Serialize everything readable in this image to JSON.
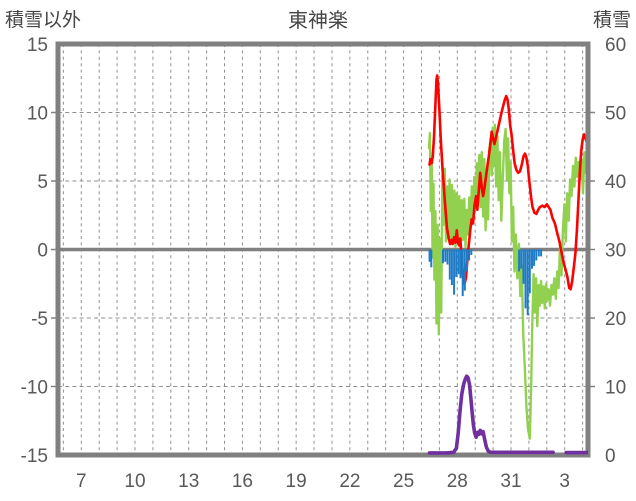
{
  "header": {
    "left_axis_title": "積雪以外",
    "chart_title": "東神楽",
    "right_axis_title": "積雪"
  },
  "colors": {
    "border": "#808080",
    "zero_line": "#808080",
    "gridline": "#8f8f8f",
    "tick_text": "#595959",
    "title_text": "#454545",
    "red_line": "#fe0000",
    "green_line": "#92d050",
    "blue_bars": "#1f7cc4",
    "purple_line": "#7030a0"
  },
  "chart_data": {
    "type": "line",
    "title": "東神楽",
    "left_axis": {
      "title": "積雪以外",
      "range": [
        -15,
        15
      ],
      "ticks": [
        15,
        10,
        5,
        0,
        -5,
        -10,
        -15
      ]
    },
    "right_axis": {
      "title": "積雪",
      "range": [
        0,
        60
      ],
      "ticks": [
        60,
        50,
        40,
        30,
        20,
        10,
        0
      ]
    },
    "x_axis": {
      "tick_labels": [
        "7",
        "10",
        "13",
        "16",
        "19",
        "22",
        "25",
        "28",
        "31",
        "3"
      ],
      "tick_days": [
        7,
        10,
        13,
        16,
        19,
        22,
        25,
        28,
        31,
        34
      ],
      "domain_days": [
        5.7,
        35.3
      ],
      "gridline_every_days": 1,
      "note_day_units": "continuous December day number; 32+ = January"
    },
    "grid": "dashed daily vertical + dashed horizontal every 5 left-units; solid thick line at left 0 / right 30",
    "legend": "none",
    "series": [
      {
        "name": "green-line",
        "axis": "left",
        "type": "line",
        "color": "#92d050",
        "width": 2.4,
        "points": [
          [
            26.42,
            7.4
          ],
          [
            26.47,
            8.5
          ],
          [
            26.52,
            2.8
          ],
          [
            26.57,
            6.6
          ],
          [
            26.62,
            -0.6
          ],
          [
            26.67,
            4.8
          ],
          [
            26.72,
            -2.2
          ],
          [
            26.78,
            2.8
          ],
          [
            26.84,
            -5.4
          ],
          [
            26.9,
            1.8
          ],
          [
            26.97,
            -6.2
          ],
          [
            27.03,
            0.8
          ],
          [
            27.1,
            -4.6
          ],
          [
            27.17,
            5.4
          ],
          [
            27.23,
            1.8
          ],
          [
            27.3,
            5.9
          ],
          [
            27.37,
            0.6
          ],
          [
            27.44,
            4.6
          ],
          [
            27.5,
            0.9
          ],
          [
            27.57,
            5.1
          ],
          [
            27.64,
            0.4
          ],
          [
            27.7,
            4.7
          ],
          [
            27.77,
            0.7
          ],
          [
            27.84,
            4.3
          ],
          [
            27.9,
            0.2
          ],
          [
            27.97,
            4.1
          ],
          [
            28.04,
            0.6
          ],
          [
            28.11,
            3.9
          ],
          [
            28.18,
            0.3
          ],
          [
            28.25,
            3.6
          ],
          [
            28.32,
            0.7
          ],
          [
            28.39,
            3.7
          ],
          [
            28.46,
            0.2
          ],
          [
            28.53,
            2.9
          ],
          [
            28.6,
            1.1
          ],
          [
            28.67,
            3.8
          ],
          [
            28.74,
            1.6
          ],
          [
            28.81,
            4.6
          ],
          [
            28.88,
            2.4
          ],
          [
            28.95,
            5.3
          ],
          [
            29.02,
            3.1
          ],
          [
            29.09,
            6.3
          ],
          [
            29.16,
            3.4
          ],
          [
            29.23,
            6.9
          ],
          [
            29.3,
            3.1
          ],
          [
            29.37,
            7.1
          ],
          [
            29.44,
            2.4
          ],
          [
            29.51,
            6.6
          ],
          [
            29.58,
            1.4
          ],
          [
            29.65,
            5.8
          ],
          [
            29.72,
            2.2
          ],
          [
            29.79,
            7.3
          ],
          [
            29.86,
            8.1
          ],
          [
            29.92,
            5.4
          ],
          [
            29.98,
            8.9
          ],
          [
            30.04,
            6.1
          ],
          [
            30.1,
            9.1
          ],
          [
            30.17,
            4.6
          ],
          [
            30.24,
            8.3
          ],
          [
            30.31,
            3.6
          ],
          [
            30.38,
            7.1
          ],
          [
            30.46,
            2.1
          ],
          [
            30.54,
            5.2
          ],
          [
            30.62,
            7.9
          ],
          [
            30.7,
            8.8
          ],
          [
            30.77,
            5.1
          ],
          [
            30.84,
            8.1
          ],
          [
            30.91,
            4.1
          ],
          [
            30.98,
            6.4
          ],
          [
            31.05,
            0.6
          ],
          [
            31.12,
            3.1
          ],
          [
            31.19,
            -1.6
          ],
          [
            31.27,
            1.1
          ],
          [
            31.35,
            -2.1
          ],
          [
            31.44,
            0.4
          ],
          [
            31.52,
            -3.4
          ],
          [
            31.6,
            -1.2
          ],
          [
            31.68,
            -6.1
          ],
          [
            31.77,
            -8.6
          ],
          [
            31.86,
            -11.4
          ],
          [
            31.95,
            -13.1
          ],
          [
            32.05,
            -13.8
          ],
          [
            32.12,
            -10.1
          ],
          [
            32.19,
            -5.4
          ],
          [
            32.26,
            -1.8
          ],
          [
            32.33,
            -4.6
          ],
          [
            32.4,
            -2.1
          ],
          [
            32.47,
            -5.6
          ],
          [
            32.54,
            -2.6
          ],
          [
            32.61,
            -4.1
          ],
          [
            32.68,
            -2.3
          ],
          [
            32.75,
            -3.9
          ],
          [
            32.82,
            -2.7
          ],
          [
            32.89,
            -4.3
          ],
          [
            32.96,
            -2.5
          ],
          [
            33.03,
            -3.7
          ],
          [
            33.1,
            -2.9
          ],
          [
            33.18,
            -4.1
          ],
          [
            33.26,
            -2.6
          ],
          [
            33.34,
            -3.3
          ],
          [
            33.42,
            -2.1
          ],
          [
            33.5,
            -3.6
          ],
          [
            33.58,
            -1.6
          ],
          [
            33.66,
            -2.8
          ],
          [
            33.74,
            0.4
          ],
          [
            33.82,
            -1.9
          ],
          [
            33.9,
            1.4
          ],
          [
            33.98,
            3.3
          ],
          [
            34.06,
            0.6
          ],
          [
            34.14,
            4.1
          ],
          [
            34.22,
            2.1
          ],
          [
            34.3,
            5.1
          ],
          [
            34.38,
            3.9
          ],
          [
            34.46,
            6.1
          ],
          [
            34.54,
            4.6
          ],
          [
            34.62,
            6.7
          ],
          [
            34.7,
            5.3
          ],
          [
            34.78,
            6.4
          ],
          [
            34.86,
            5.1
          ],
          [
            34.94,
            6.6
          ],
          [
            35.02,
            4.1
          ],
          [
            35.1,
            7.1
          ],
          [
            35.18,
            5.6
          ],
          [
            35.3,
            8.6
          ]
        ]
      },
      {
        "name": "red-line",
        "axis": "left",
        "type": "line",
        "color": "#fe0000",
        "width": 2.6,
        "points": [
          [
            26.45,
            6.2
          ],
          [
            26.5,
            6.6
          ],
          [
            26.57,
            6.3
          ],
          [
            26.63,
            6.8
          ],
          [
            26.7,
            8.2
          ],
          [
            26.78,
            10.6
          ],
          [
            26.84,
            12.4
          ],
          [
            26.88,
            12.7
          ],
          [
            26.93,
            12.0
          ],
          [
            27.0,
            10.2
          ],
          [
            27.08,
            8.0
          ],
          [
            27.18,
            5.8
          ],
          [
            27.3,
            3.6
          ],
          [
            27.42,
            1.6
          ],
          [
            27.52,
            0.8
          ],
          [
            27.6,
            0.4
          ],
          [
            27.68,
            0.7
          ],
          [
            27.75,
            0.4
          ],
          [
            27.82,
            0.9
          ],
          [
            27.9,
            0.5
          ],
          [
            27.97,
            1.4
          ],
          [
            28.03,
            0.6
          ],
          [
            28.1,
            0.3
          ],
          [
            28.17,
            0.8
          ],
          [
            28.24,
            -0.6
          ],
          [
            28.32,
            -1.9
          ],
          [
            28.4,
            -2.5
          ],
          [
            28.48,
            -2.1
          ],
          [
            28.55,
            -1.0
          ],
          [
            28.63,
            0.2
          ],
          [
            28.72,
            1.4
          ],
          [
            28.8,
            2.2
          ],
          [
            28.88,
            1.9
          ],
          [
            28.96,
            3.2
          ],
          [
            29.05,
            3.9
          ],
          [
            29.12,
            2.9
          ],
          [
            29.2,
            4.3
          ],
          [
            29.28,
            5.6
          ],
          [
            29.36,
            4.6
          ],
          [
            29.44,
            3.9
          ],
          [
            29.52,
            4.5
          ],
          [
            29.6,
            5.3
          ],
          [
            29.68,
            6.1
          ],
          [
            29.76,
            6.8
          ],
          [
            29.84,
            7.6
          ],
          [
            29.92,
            8.6
          ],
          [
            30.0,
            8.1
          ],
          [
            30.08,
            7.7
          ],
          [
            30.16,
            8.2
          ],
          [
            30.25,
            8.7
          ],
          [
            30.35,
            9.3
          ],
          [
            30.45,
            9.9
          ],
          [
            30.55,
            10.4
          ],
          [
            30.65,
            10.9
          ],
          [
            30.73,
            11.2
          ],
          [
            30.8,
            11.0
          ],
          [
            30.87,
            10.3
          ],
          [
            30.95,
            9.1
          ],
          [
            31.03,
            8.4
          ],
          [
            31.12,
            7.2
          ],
          [
            31.2,
            6.3
          ],
          [
            31.3,
            5.8
          ],
          [
            31.4,
            5.6
          ],
          [
            31.5,
            5.7
          ],
          [
            31.6,
            6.2
          ],
          [
            31.7,
            6.8
          ],
          [
            31.78,
            7.0
          ],
          [
            31.86,
            6.7
          ],
          [
            31.94,
            6.1
          ],
          [
            32.03,
            4.9
          ],
          [
            32.12,
            3.8
          ],
          [
            32.2,
            3.1
          ],
          [
            32.3,
            2.7
          ],
          [
            32.42,
            2.6
          ],
          [
            32.52,
            2.9
          ],
          [
            32.62,
            3.1
          ],
          [
            32.75,
            3.2
          ],
          [
            32.88,
            3.1
          ],
          [
            33.0,
            3.3
          ],
          [
            33.1,
            3.1
          ],
          [
            33.2,
            2.9
          ],
          [
            33.32,
            2.3
          ],
          [
            33.45,
            1.9
          ],
          [
            33.58,
            1.2
          ],
          [
            33.7,
            0.6
          ],
          [
            33.82,
            -0.2
          ],
          [
            33.95,
            -1.0
          ],
          [
            34.05,
            -1.5
          ],
          [
            34.15,
            -2.0
          ],
          [
            34.25,
            -2.8
          ],
          [
            34.33,
            -2.9
          ],
          [
            34.42,
            -2.3
          ],
          [
            34.52,
            -1.2
          ],
          [
            34.6,
            -0.2
          ],
          [
            34.68,
            1.4
          ],
          [
            34.76,
            3.4
          ],
          [
            34.84,
            5.6
          ],
          [
            34.92,
            7.2
          ],
          [
            35.0,
            8.0
          ],
          [
            35.08,
            8.4
          ],
          [
            35.16,
            8.1
          ],
          [
            35.24,
            7.8
          ],
          [
            35.3,
            8.3
          ]
        ]
      },
      {
        "name": "blue-bars",
        "axis": "left",
        "type": "bar",
        "color": "#1f7cc4",
        "bar_width_days": 0.11,
        "points": [
          [
            26.45,
            -0.9
          ],
          [
            26.55,
            -1.3
          ],
          [
            27.2,
            -1.0
          ],
          [
            27.33,
            -0.9
          ],
          [
            27.45,
            -1.1
          ],
          [
            27.58,
            -2.2
          ],
          [
            27.7,
            -2.6
          ],
          [
            27.82,
            -3.3
          ],
          [
            27.94,
            -2.0
          ],
          [
            28.06,
            -1.8
          ],
          [
            28.18,
            -2.1
          ],
          [
            28.3,
            -3.4
          ],
          [
            28.42,
            -3.0
          ],
          [
            28.54,
            -1.6
          ],
          [
            28.66,
            -0.8
          ],
          [
            28.78,
            -0.4
          ],
          [
            31.45,
            -1.6
          ],
          [
            31.57,
            -1.4
          ],
          [
            31.69,
            -2.5
          ],
          [
            31.81,
            -4.3
          ],
          [
            31.93,
            -4.8
          ],
          [
            32.05,
            -3.2
          ],
          [
            32.17,
            -1.4
          ],
          [
            32.29,
            -1.2
          ],
          [
            32.41,
            -0.8
          ],
          [
            32.55,
            -0.5
          ],
          [
            32.68,
            -0.5
          ]
        ]
      },
      {
        "name": "purple-snow-line",
        "axis": "right",
        "type": "line",
        "color": "#7030a0",
        "width": 3.6,
        "segments": [
          [
            [
              26.45,
              0.3
            ],
            [
              27.4,
              0.3
            ],
            [
              27.8,
              0.4
            ],
            [
              27.95,
              1.0
            ],
            [
              28.05,
              3.2
            ],
            [
              28.15,
              6.4
            ],
            [
              28.25,
              8.9
            ],
            [
              28.35,
              10.3
            ],
            [
              28.45,
              11.1
            ],
            [
              28.52,
              11.5
            ],
            [
              28.6,
              11.3
            ],
            [
              28.68,
              10.3
            ],
            [
              28.76,
              8.2
            ],
            [
              28.84,
              6.0
            ],
            [
              28.9,
              4.4
            ],
            [
              28.97,
              3.2
            ],
            [
              29.05,
              2.6
            ],
            [
              29.13,
              3.3
            ],
            [
              29.2,
              3.0
            ],
            [
              29.28,
              3.6
            ],
            [
              29.36,
              3.1
            ],
            [
              29.44,
              3.4
            ],
            [
              29.52,
              2.4
            ],
            [
              29.62,
              1.2
            ],
            [
              29.72,
              0.6
            ],
            [
              29.85,
              0.4
            ],
            [
              30.2,
              0.4
            ],
            [
              33.35,
              0.4
            ]
          ],
          [
            [
              34.08,
              0.35
            ],
            [
              35.3,
              0.35
            ]
          ]
        ]
      }
    ]
  }
}
